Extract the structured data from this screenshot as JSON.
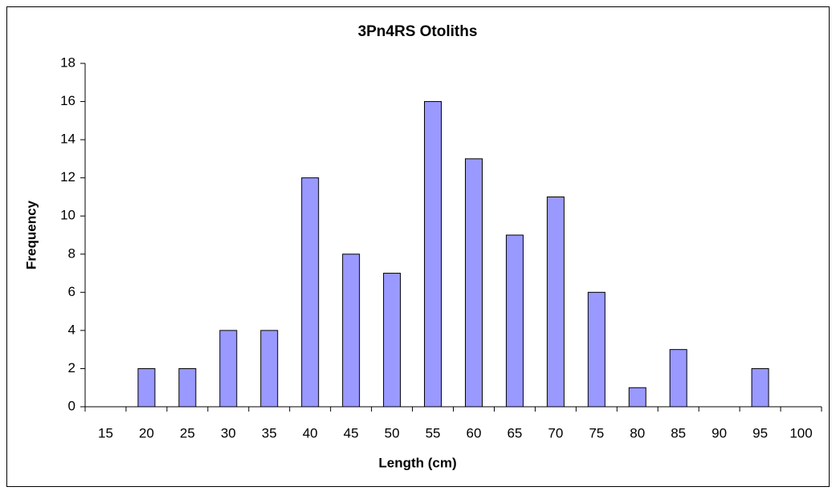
{
  "chart_data": {
    "type": "bar",
    "title": "3Pn4RS Otoliths",
    "x_label": "Length (cm)",
    "y_label": "Frequency",
    "categories": [
      "15",
      "20",
      "25",
      "30",
      "35",
      "40",
      "45",
      "50",
      "55",
      "60",
      "65",
      "70",
      "75",
      "80",
      "85",
      "90",
      "95",
      "100"
    ],
    "values": [
      0,
      2,
      2,
      4,
      4,
      12,
      8,
      7,
      16,
      13,
      9,
      11,
      6,
      1,
      3,
      0,
      2,
      0
    ],
    "color": "#9999ff",
    "ylim": [
      0,
      18
    ],
    "yticks": [
      0,
      2,
      4,
      6,
      8,
      10,
      12,
      14,
      16,
      18
    ],
    "grid": false
  }
}
